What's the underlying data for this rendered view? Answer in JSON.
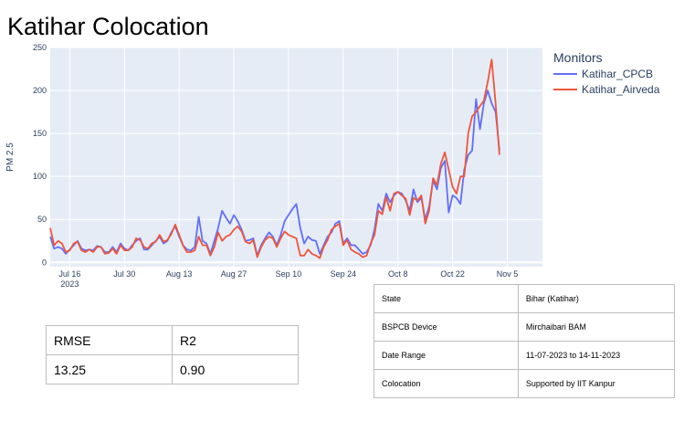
{
  "title": "Katihar Colocation",
  "chart_data": {
    "type": "line",
    "ylabel": "PM 2.5",
    "xlabel": "",
    "ylim": [
      -5,
      250
    ],
    "yticks": [
      0,
      50,
      100,
      150,
      200,
      250
    ],
    "xlim": [
      "2023-07-11",
      "2023-11-14"
    ],
    "xticks": [
      {
        "date": "2023-07-16",
        "label": "Jul 16",
        "sublabel": "2023"
      },
      {
        "date": "2023-07-30",
        "label": "Jul 30"
      },
      {
        "date": "2023-08-13",
        "label": "Aug 13"
      },
      {
        "date": "2023-08-27",
        "label": "Aug 27"
      },
      {
        "date": "2023-09-10",
        "label": "Sep 10"
      },
      {
        "date": "2023-09-24",
        "label": "Sep 24"
      },
      {
        "date": "2023-10-08",
        "label": "Oct 8"
      },
      {
        "date": "2023-10-22",
        "label": "Oct 22"
      },
      {
        "date": "2023-11-05",
        "label": "Nov 5"
      }
    ],
    "x_start": "2023-07-11",
    "x_step_days": 1,
    "legend_title": "Monitors",
    "legend_position": "top-right",
    "grid": true,
    "background": "#e5ecf6",
    "series": [
      {
        "name": "Katihar_CPCB",
        "color": "#636efa",
        "values": [
          30,
          16,
          18,
          16,
          10,
          15,
          20,
          25,
          16,
          14,
          15,
          14,
          19,
          18,
          12,
          12,
          18,
          12,
          22,
          16,
          14,
          20,
          25,
          28,
          15,
          15,
          20,
          25,
          30,
          22,
          25,
          35,
          42,
          30,
          20,
          15,
          14,
          18,
          53,
          25,
          22,
          10,
          25,
          40,
          60,
          52,
          45,
          55,
          48,
          38,
          25,
          26,
          28,
          8,
          20,
          28,
          35,
          30,
          20,
          32,
          48,
          55,
          62,
          68,
          40,
          22,
          30,
          26,
          25,
          10,
          20,
          30,
          35,
          45,
          48,
          22,
          28,
          20,
          20,
          15,
          10,
          12,
          20,
          38,
          68,
          60,
          80,
          70,
          78,
          82,
          80,
          72,
          60,
          85,
          70,
          75,
          50,
          65,
          95,
          85,
          110,
          118,
          58,
          78,
          75,
          68,
          108,
          125,
          130,
          190,
          155,
          185,
          200,
          185,
          175,
          130
        ]
      },
      {
        "name": "Katihar_Airveda",
        "color": "#ef553b",
        "values": [
          40,
          20,
          25,
          22,
          12,
          14,
          22,
          24,
          14,
          12,
          15,
          12,
          18,
          18,
          10,
          11,
          16,
          10,
          20,
          14,
          14,
          18,
          28,
          26,
          18,
          16,
          22,
          24,
          32,
          24,
          26,
          33,
          44,
          32,
          20,
          12,
          12,
          14,
          30,
          20,
          20,
          8,
          18,
          35,
          25,
          30,
          32,
          38,
          42,
          36,
          24,
          22,
          26,
          6,
          18,
          26,
          30,
          28,
          18,
          28,
          36,
          32,
          30,
          28,
          8,
          8,
          15,
          10,
          8,
          5,
          18,
          26,
          38,
          42,
          45,
          20,
          26,
          15,
          12,
          10,
          6,
          8,
          22,
          32,
          60,
          56,
          76,
          60,
          80,
          82,
          78,
          74,
          55,
          75,
          72,
          78,
          45,
          60,
          98,
          90,
          115,
          128,
          108,
          88,
          80,
          100,
          100,
          150,
          170,
          175,
          182,
          188,
          210,
          236,
          185,
          125
        ]
      }
    ]
  },
  "legend": {
    "title": "Monitors",
    "items": [
      "Katihar_CPCB",
      "Katihar_Airveda"
    ]
  },
  "stats_table": {
    "headers": [
      "RMSE",
      "R2"
    ],
    "values": [
      "13.25",
      "0.90"
    ]
  },
  "info_table": {
    "rows": [
      {
        "key": "State",
        "value": "Bihar (Katihar)"
      },
      {
        "key": "BSPCB Device",
        "value": "Mirchaibari BAM"
      },
      {
        "key": "Date Range",
        "value": "11-07-2023 to 14-11-2023"
      },
      {
        "key": "Colocation",
        "value": "Supported by IIT Kanpur"
      }
    ]
  }
}
